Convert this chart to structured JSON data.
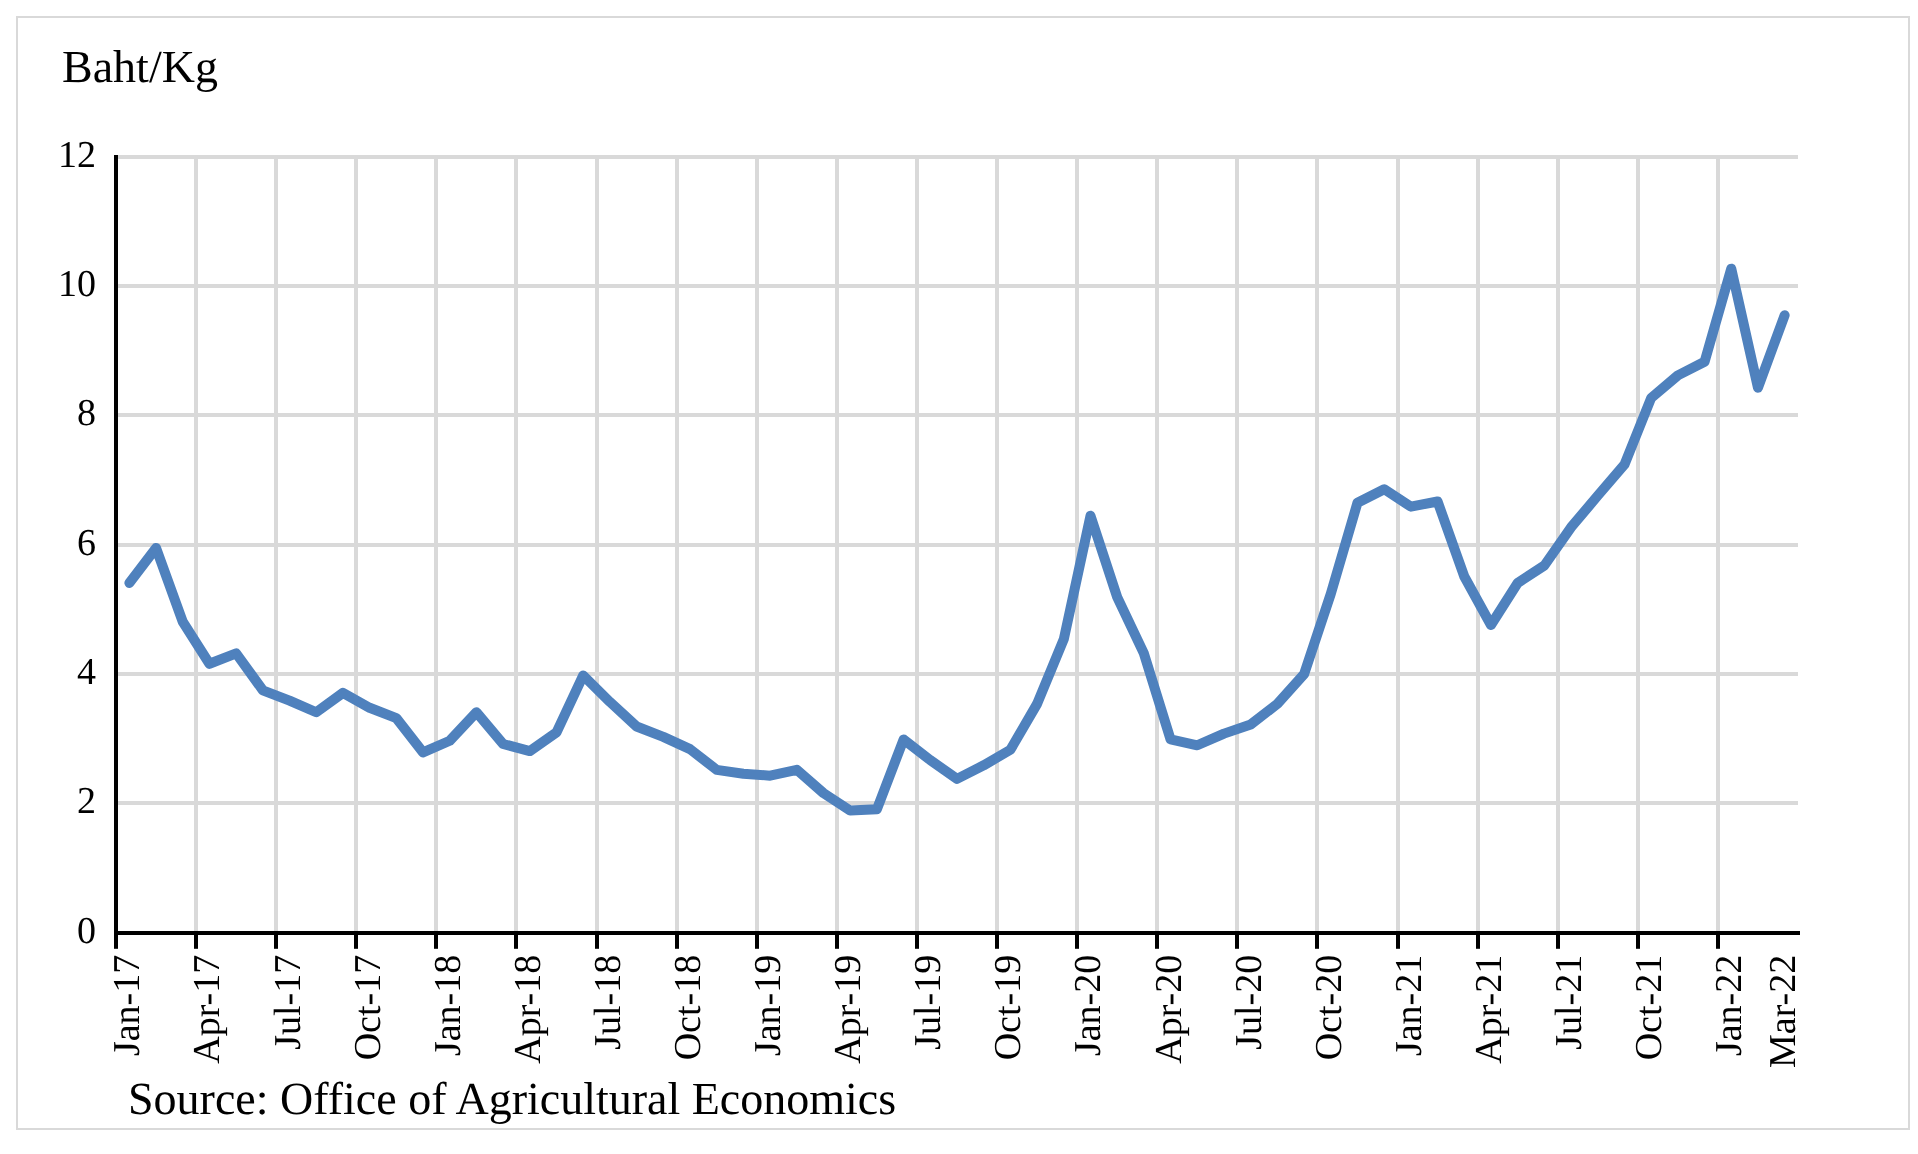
{
  "chart_data": {
    "type": "line",
    "ylabel": "Baht/Kg",
    "annotations": [
      "Source: Office of Agricultural Economics"
    ],
    "categories": [
      "Jan-17",
      null,
      null,
      "Apr-17",
      null,
      null,
      "Jul-17",
      null,
      null,
      "Oct-17",
      null,
      null,
      "Jan-18",
      null,
      null,
      "Apr-18",
      null,
      null,
      "Jul-18",
      null,
      null,
      "Oct-18",
      null,
      null,
      "Jan-19",
      null,
      null,
      "Apr-19",
      null,
      null,
      "Jul-19",
      null,
      null,
      "Oct-19",
      null,
      null,
      "Jan-20",
      null,
      null,
      "Apr-20",
      null,
      null,
      "Jul-20",
      null,
      null,
      "Oct-20",
      null,
      null,
      "Jan-21",
      null,
      null,
      "Apr-21",
      null,
      null,
      "Jul-21",
      null,
      null,
      "Oct-21",
      null,
      null,
      "Jan-22",
      null,
      "Mar-22"
    ],
    "series": [
      {
        "color": "#4f81bd",
        "values": [
          5.41,
          5.95,
          4.81,
          4.16,
          4.32,
          3.75,
          3.59,
          3.41,
          3.71,
          3.48,
          3.32,
          2.79,
          2.97,
          3.41,
          2.92,
          2.81,
          3.1,
          3.98,
          3.57,
          3.19,
          3.03,
          2.84,
          2.52,
          2.46,
          2.43,
          2.52,
          2.16,
          1.89,
          1.91,
          2.99,
          2.67,
          2.38,
          2.59,
          2.83,
          3.54,
          4.54,
          6.45,
          5.19,
          4.32,
          2.99,
          2.9,
          3.08,
          3.22,
          3.54,
          4.0,
          5.24,
          6.65,
          6.86,
          6.59,
          6.67,
          5.51,
          4.76,
          5.41,
          5.68,
          6.27,
          6.76,
          7.24,
          8.27,
          8.62,
          8.83,
          10.27,
          8.43,
          9.55
        ]
      }
    ],
    "ylim": [
      0,
      12
    ],
    "yticks": [
      0,
      2,
      4,
      6,
      8,
      10,
      12
    ],
    "grid": true,
    "legend": false,
    "marker": "none",
    "line_style": "solid"
  }
}
